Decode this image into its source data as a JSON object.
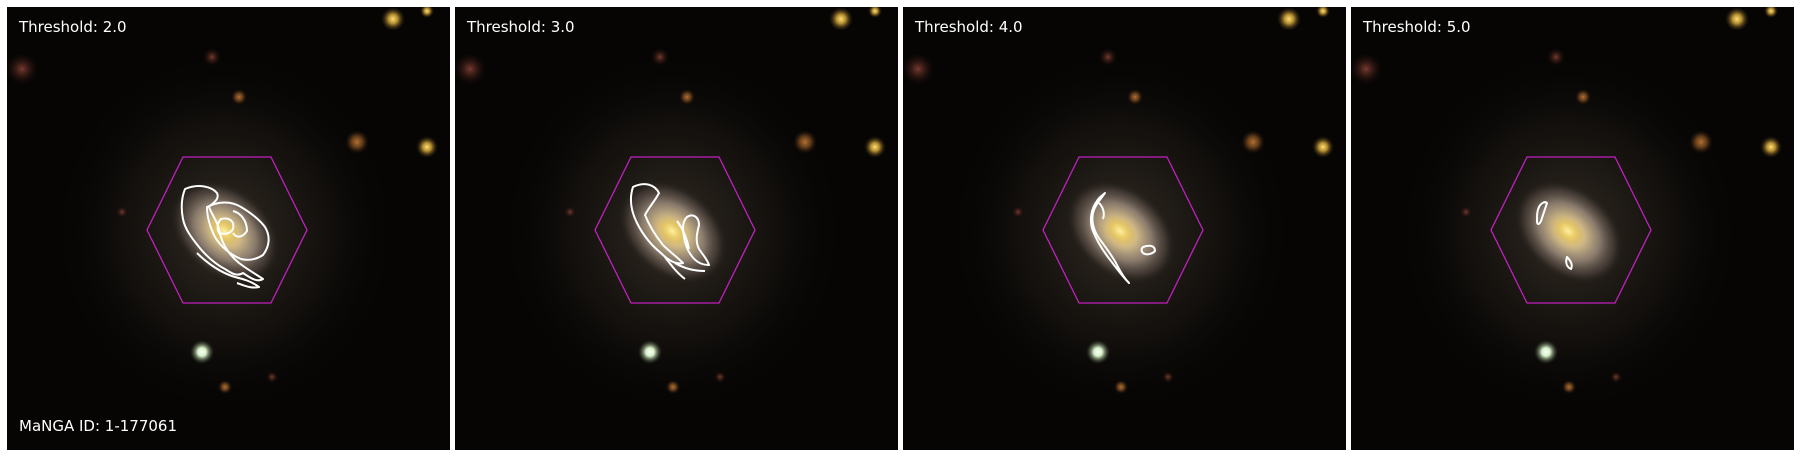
{
  "panels": [
    {
      "threshold_label": "Threshold: 2.0"
    },
    {
      "threshold_label": "Threshold: 3.0"
    },
    {
      "threshold_label": "Threshold: 4.0"
    },
    {
      "threshold_label": "Threshold: 5.0"
    }
  ],
  "manga_id_label": "MaNGA ID: 1-177061",
  "colors": {
    "background": "#060504",
    "hexagon": "#c020c0",
    "contour": "#ffffff",
    "galaxy_core": "#e8d080"
  }
}
